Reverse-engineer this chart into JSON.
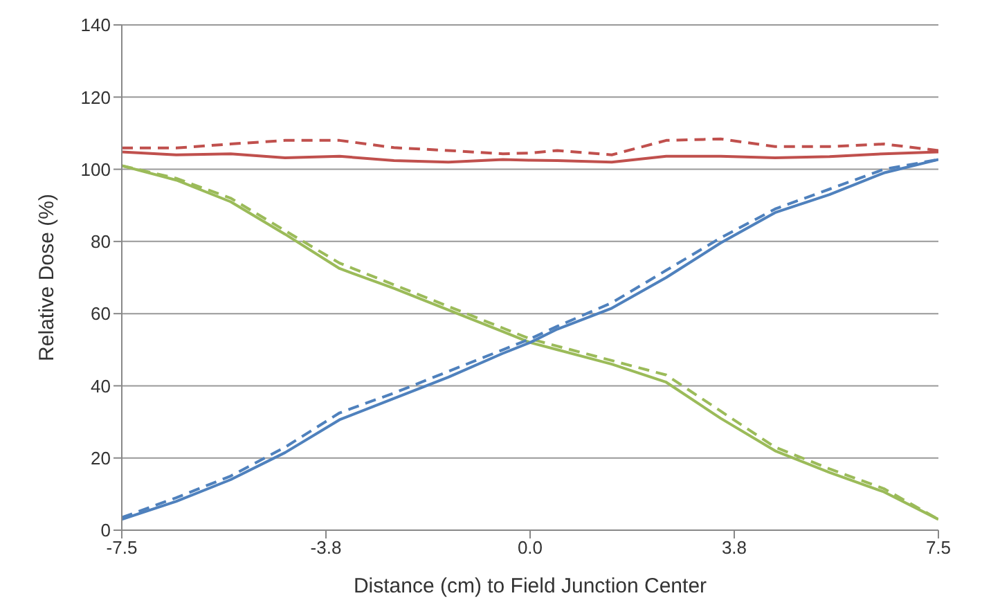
{
  "chart_data": {
    "type": "line",
    "xlabel": "Distance (cm) to Field Junction Center",
    "ylabel": "Relative Dose (%)",
    "x": [
      -7.5,
      -6.5,
      -5.5,
      -4.5,
      -3.5,
      -2.5,
      -1.5,
      -0.5,
      0,
      0.5,
      1.5,
      2.5,
      3.5,
      4.5,
      5.5,
      6.5,
      7.5
    ],
    "series": [
      {
        "color": "#c0504d",
        "line_style": "solid",
        "values": [
          104.8,
          104,
          104.3,
          103.2,
          103.6,
          102.4,
          102,
          102.7,
          102.5,
          102.4,
          102,
          103.6,
          103.6,
          103.2,
          103.5,
          104.3,
          104.8
        ]
      },
      {
        "color": "#c0504d",
        "line_style": "dashed",
        "values": [
          105.9,
          105.9,
          107,
          108,
          108,
          106,
          105.2,
          104.3,
          104.5,
          105.2,
          104,
          108,
          108.4,
          106.3,
          106.3,
          107,
          105.2
        ]
      },
      {
        "color": "#9bbb59",
        "line_style": "solid",
        "values": [
          101,
          97,
          91,
          82,
          72.5,
          67,
          61,
          55,
          52,
          50,
          46,
          41,
          31,
          22,
          16,
          10.6,
          3
        ]
      },
      {
        "color": "#9bbb59",
        "line_style": "dashed",
        "values": [
          101,
          97.5,
          92,
          83,
          74,
          68,
          62,
          56,
          53,
          51,
          47,
          43,
          33,
          23,
          17,
          11.5,
          3
        ]
      },
      {
        "color": "#4f81bd",
        "line_style": "solid",
        "values": [
          3,
          8,
          14,
          21.5,
          30.6,
          36.5,
          42.4,
          49,
          52,
          55.7,
          61.5,
          70,
          79.6,
          88,
          93,
          99,
          102.7
        ]
      },
      {
        "color": "#4f81bd",
        "line_style": "dashed",
        "values": [
          3.5,
          9,
          15,
          23,
          32.5,
          38,
          44,
          50,
          53,
          56.5,
          63,
          72,
          81,
          89,
          94.5,
          100,
          102.7
        ]
      }
    ],
    "xlim": [
      -7.5,
      7.5
    ],
    "xticks": [
      {
        "value": -7.5,
        "label": "-7.5"
      },
      {
        "value": -3.75,
        "label": "-3.8"
      },
      {
        "value": 0,
        "label": "0.0"
      },
      {
        "value": 3.75,
        "label": "3.8"
      },
      {
        "value": 7.5,
        "label": "7.5"
      }
    ],
    "ylim": [
      0,
      140
    ],
    "yticks": [
      0,
      20,
      40,
      60,
      80,
      100,
      120,
      140
    ],
    "grid": "y",
    "marker": "none",
    "legend": false
  }
}
